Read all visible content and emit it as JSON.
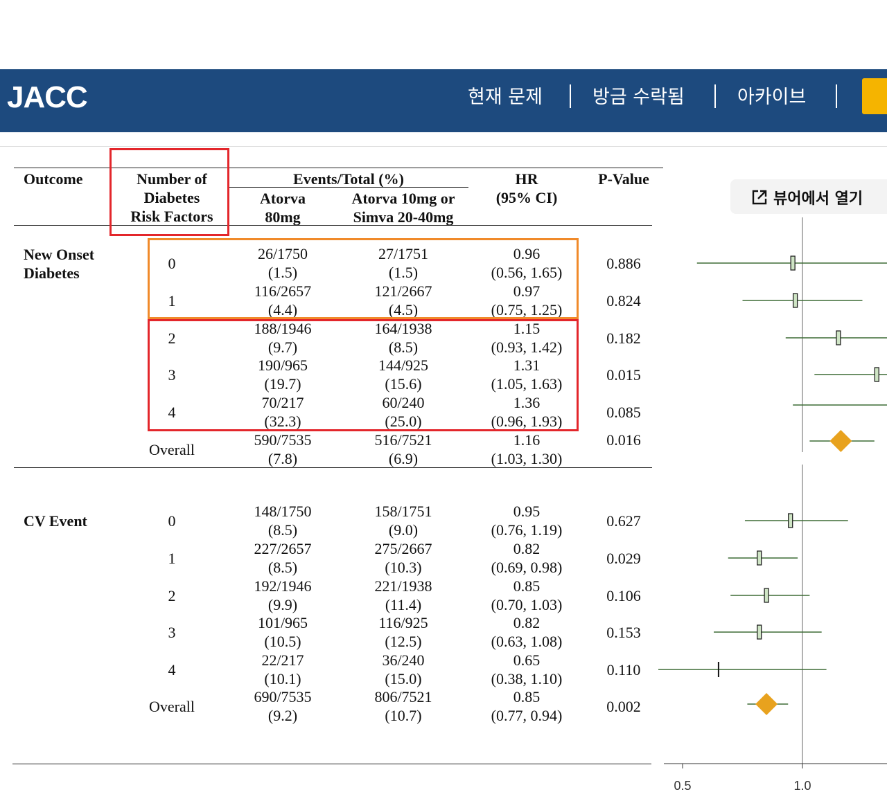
{
  "header": {
    "logo": "JACC",
    "nav": [
      "현재 문제",
      "방금 수락됨",
      "아카이브"
    ]
  },
  "viewer_button": {
    "label": "뷰어에서 열기",
    "icon": "open-external-icon"
  },
  "table": {
    "headers": {
      "outcome": "Outcome",
      "risk_factors": [
        "Number of",
        "Diabetes",
        "Risk Factors"
      ],
      "events_total": "Events/Total (%)",
      "atorva80": [
        "Atorva",
        "80mg"
      ],
      "atorva10": [
        "Atorva 10mg or",
        "Simva 20-40mg"
      ],
      "hr": [
        "HR",
        "(95% CI)"
      ],
      "pvalue": "P-Value"
    },
    "sections": [
      {
        "label": [
          "New Onset",
          "Diabetes"
        ],
        "rows": [
          {
            "rf": "0",
            "a1": "26/1750",
            "a2": "(1.5)",
            "b1": "27/1751",
            "b2": "(1.5)",
            "h1": "0.96",
            "h2": "(0.56, 1.65)",
            "p": "0.886"
          },
          {
            "rf": "1",
            "a1": "116/2657",
            "a2": "(4.4)",
            "b1": "121/2667",
            "b2": "(4.5)",
            "h1": "0.97",
            "h2": "(0.75, 1.25)",
            "p": "0.824"
          },
          {
            "rf": "2",
            "a1": "188/1946",
            "a2": "(9.7)",
            "b1": "164/1938",
            "b2": "(8.5)",
            "h1": "1.15",
            "h2": "(0.93, 1.42)",
            "p": "0.182"
          },
          {
            "rf": "3",
            "a1": "190/965",
            "a2": "(19.7)",
            "b1": "144/925",
            "b2": "(15.6)",
            "h1": "1.31",
            "h2": "(1.05, 1.63)",
            "p": "0.015"
          },
          {
            "rf": "4",
            "a1": "70/217",
            "a2": "(32.3)",
            "b1": "60/240",
            "b2": "(25.0)",
            "h1": "1.36",
            "h2": "(0.96, 1.93)",
            "p": "0.085"
          },
          {
            "rf": "Overall",
            "a1": "590/7535",
            "a2": "(7.8)",
            "b1": "516/7521",
            "b2": "(6.9)",
            "h1": "1.16",
            "h2": "(1.03, 1.30)",
            "p": "0.016"
          }
        ]
      },
      {
        "label": [
          "CV Event"
        ],
        "rows": [
          {
            "rf": "0",
            "a1": "148/1750",
            "a2": "(8.5)",
            "b1": "158/1751",
            "b2": "(9.0)",
            "h1": "0.95",
            "h2": "(0.76, 1.19)",
            "p": "0.627"
          },
          {
            "rf": "1",
            "a1": "227/2657",
            "a2": "(8.5)",
            "b1": "275/2667",
            "b2": "(10.3)",
            "h1": "0.82",
            "h2": "(0.69, 0.98)",
            "p": "0.029"
          },
          {
            "rf": "2",
            "a1": "192/1946",
            "a2": "(9.9)",
            "b1": "221/1938",
            "b2": "(11.4)",
            "h1": "0.85",
            "h2": "(0.70, 1.03)",
            "p": "0.106"
          },
          {
            "rf": "3",
            "a1": "101/965",
            "a2": "(10.5)",
            "b1": "116/925",
            "b2": "(12.5)",
            "h1": "0.82",
            "h2": "(0.63, 1.08)",
            "p": "0.153"
          },
          {
            "rf": "4",
            "a1": "22/217",
            "a2": "(10.1)",
            "b1": "36/240",
            "b2": "(15.0)",
            "h1": "0.65",
            "h2": "(0.38, 1.10)",
            "p": "0.110"
          },
          {
            "rf": "Overall",
            "a1": "690/7535",
            "a2": "(9.2)",
            "b1": "806/7521",
            "b2": "(10.7)",
            "h1": "0.85",
            "h2": "(0.77, 0.94)",
            "p": "0.002"
          }
        ]
      }
    ]
  },
  "colors": {
    "header_bg": "#1d4a7e",
    "accent_yellow": "#f5b400",
    "highlight_red": "#e3262b",
    "highlight_orange": "#f08a2a",
    "ci_line": "#3d6b35",
    "marker_fill": "#cfe5c5",
    "overall_diamond": "#e8a21e"
  },
  "chart_data": {
    "type": "scatter",
    "xlim": [
      0.4,
      2.0
    ],
    "xticks": [
      "0.5",
      "1.0",
      "1.5",
      "2.0"
    ],
    "reference_line": 1.0,
    "series": [
      {
        "name": "New Onset Diabetes",
        "points": [
          {
            "label": "0",
            "hr": 0.96,
            "lo": 0.56,
            "hi": 1.65,
            "shape": "square"
          },
          {
            "label": "1",
            "hr": 0.97,
            "lo": 0.75,
            "hi": 1.25,
            "shape": "square"
          },
          {
            "label": "2",
            "hr": 1.15,
            "lo": 0.93,
            "hi": 1.42,
            "shape": "square"
          },
          {
            "label": "3",
            "hr": 1.31,
            "lo": 1.05,
            "hi": 1.63,
            "shape": "square"
          },
          {
            "label": "4",
            "hr": 1.36,
            "lo": 0.96,
            "hi": 1.93,
            "shape": "tick"
          },
          {
            "label": "Overall",
            "hr": 1.16,
            "lo": 1.03,
            "hi": 1.3,
            "shape": "diamond"
          }
        ]
      },
      {
        "name": "CV Event",
        "points": [
          {
            "label": "0",
            "hr": 0.95,
            "lo": 0.76,
            "hi": 1.19,
            "shape": "square"
          },
          {
            "label": "1",
            "hr": 0.82,
            "lo": 0.69,
            "hi": 0.98,
            "shape": "square"
          },
          {
            "label": "2",
            "hr": 0.85,
            "lo": 0.7,
            "hi": 1.03,
            "shape": "square"
          },
          {
            "label": "3",
            "hr": 0.82,
            "lo": 0.63,
            "hi": 1.08,
            "shape": "square"
          },
          {
            "label": "4",
            "hr": 0.65,
            "lo": 0.38,
            "hi": 1.1,
            "shape": "tick"
          },
          {
            "label": "Overall",
            "hr": 0.85,
            "lo": 0.77,
            "hi": 0.94,
            "shape": "diamond"
          }
        ]
      }
    ]
  }
}
